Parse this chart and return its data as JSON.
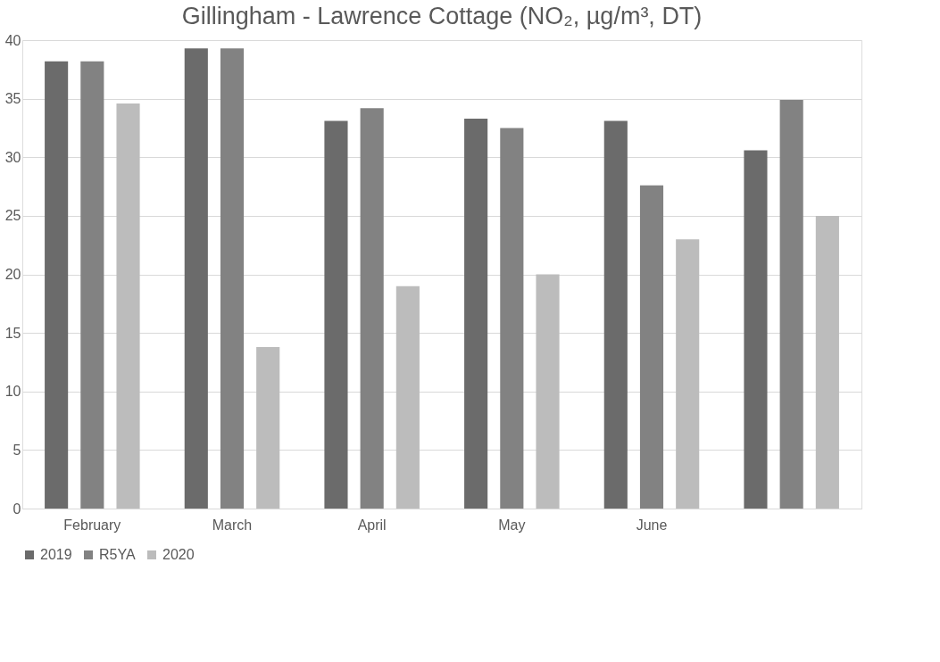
{
  "chart_data": {
    "type": "bar",
    "title": "Gillingham - Lawrence Cottage (NO₂, µg/m³, DT)",
    "categories": [
      "February",
      "March",
      "April",
      "May",
      "June",
      null
    ],
    "series": [
      {
        "name": "2019",
        "color": "#6b6b6b",
        "values": [
          38.2,
          39.3,
          33.1,
          33.3,
          33.1,
          30.6
        ]
      },
      {
        "name": "R5YA",
        "color": "#828282",
        "values": [
          38.2,
          39.3,
          34.2,
          32.5,
          27.6,
          34.9
        ]
      },
      {
        "name": "2020",
        "color": "#bcbcbc",
        "values": [
          34.6,
          13.8,
          19.0,
          20.0,
          23.0,
          25.0
        ]
      }
    ],
    "ylim": [
      0,
      40
    ],
    "yticks": [
      0,
      5,
      10,
      15,
      20,
      25,
      30,
      35,
      40
    ],
    "grid": "y",
    "legend": "bottom"
  }
}
